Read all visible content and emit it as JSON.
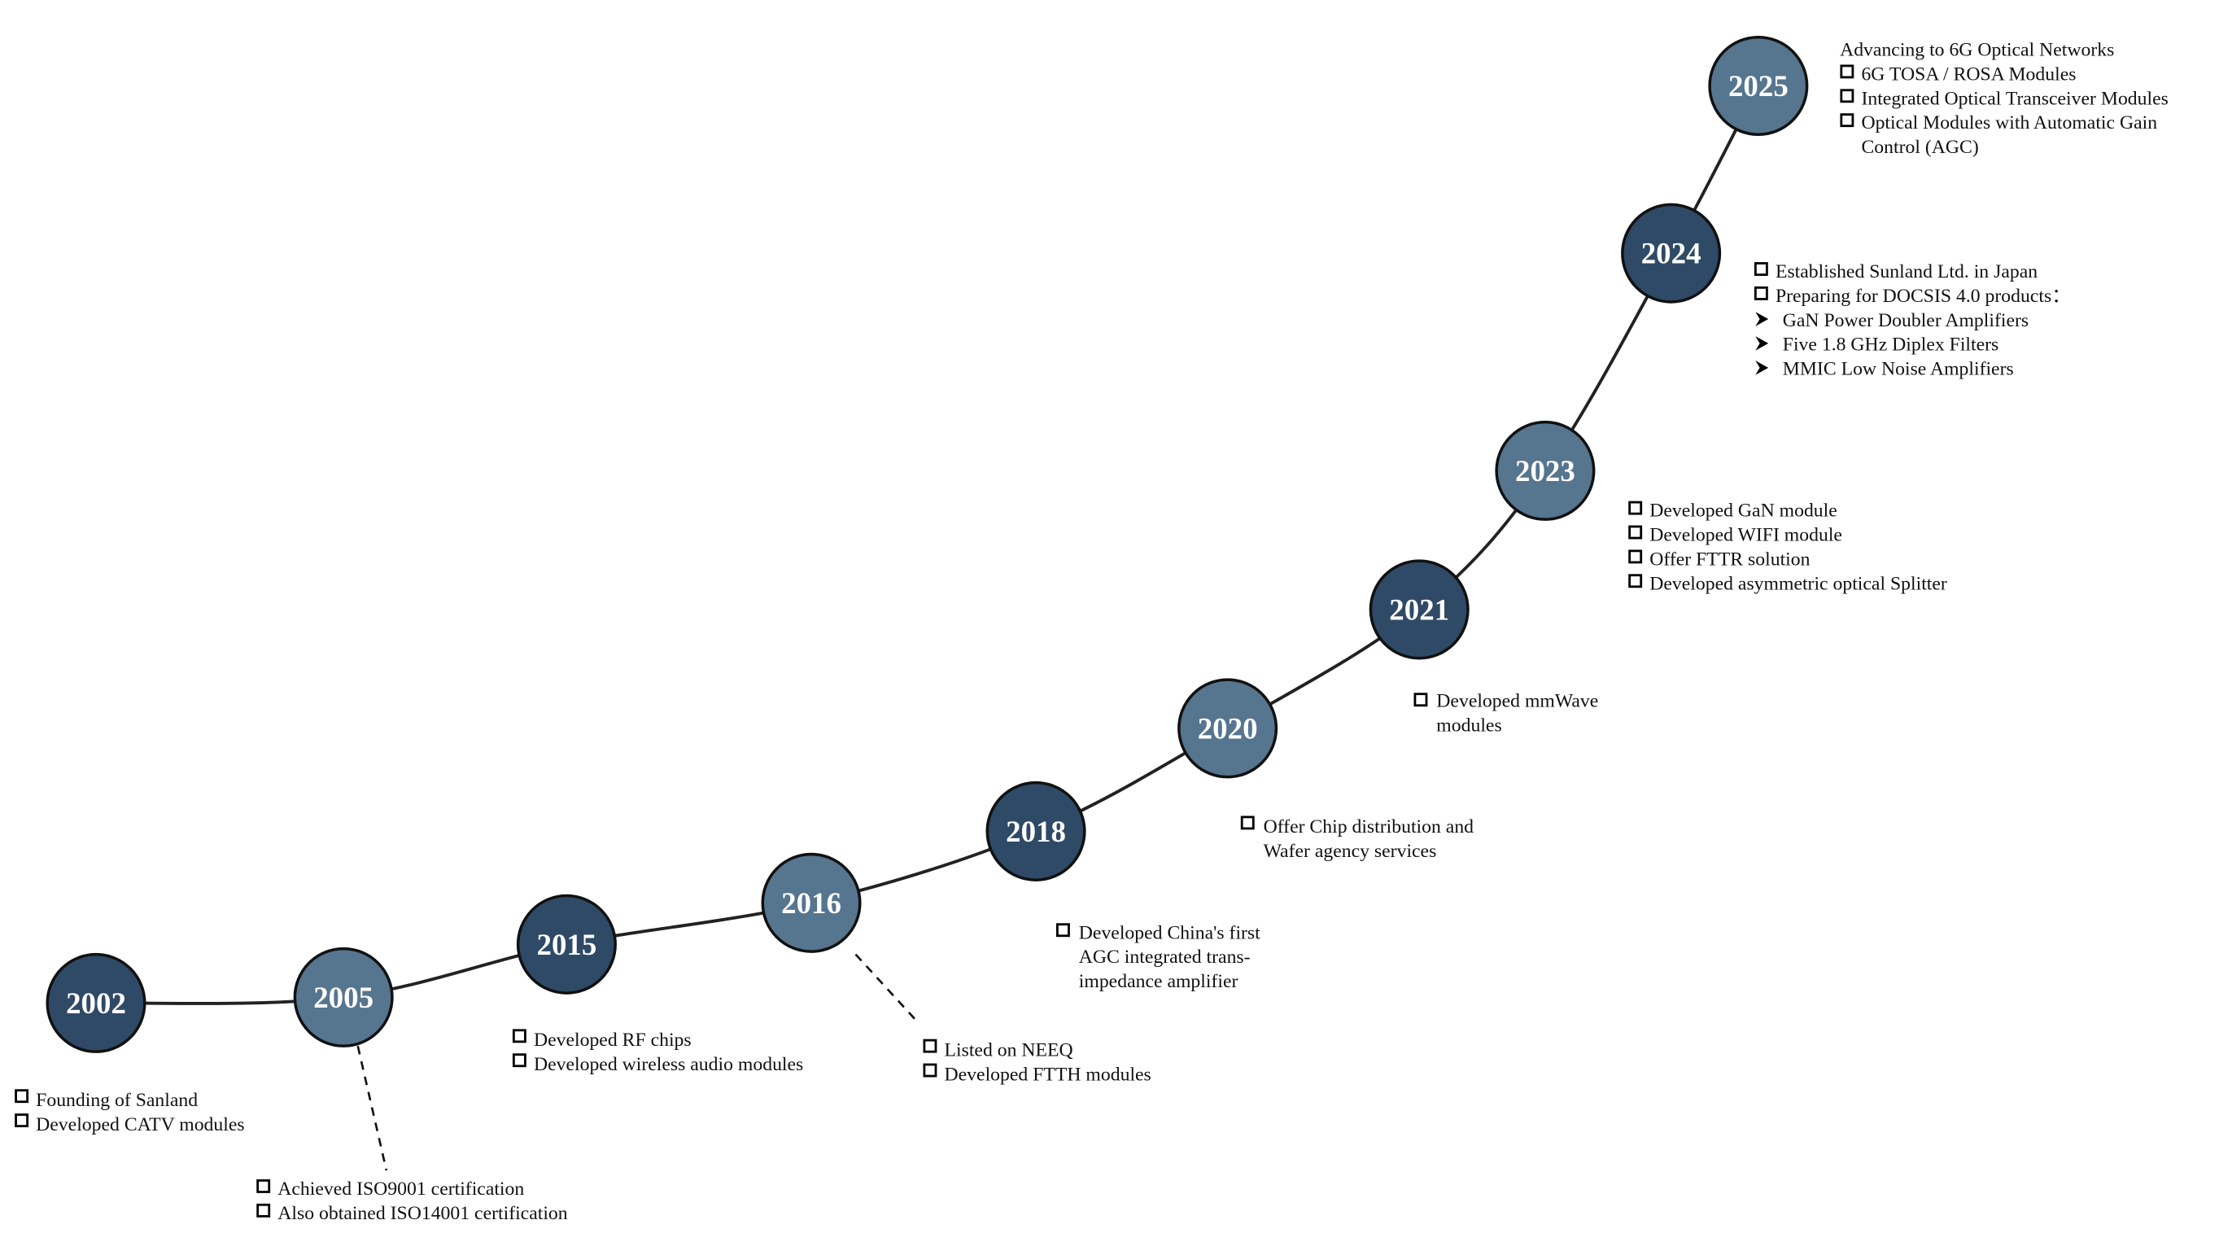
{
  "colors": {
    "node_dark": "#2f4a66",
    "node_light": "#56758f",
    "line": "#222222"
  },
  "milestones": [
    {
      "year": "2002",
      "items": [
        "Founding of Sanland",
        "Developed CATV modules"
      ]
    },
    {
      "year": "2005",
      "items": [
        "Achieved ISO9001 certification",
        "Also obtained ISO14001 certification"
      ]
    },
    {
      "year": "2015",
      "items": [
        "Developed RF chips",
        "Developed wireless audio modules"
      ]
    },
    {
      "year": "2016",
      "items": [
        "Listed on NEEQ",
        "Developed FTTH modules"
      ]
    },
    {
      "year": "2018",
      "items": [
        "Developed China's first",
        "AGC integrated trans-",
        "impedance amplifier"
      ]
    },
    {
      "year": "2020",
      "items": [
        "Offer Chip distribution and",
        "Wafer agency services"
      ]
    },
    {
      "year": "2021",
      "items": [
        "Developed mmWave",
        "modules"
      ]
    },
    {
      "year": "2023",
      "items": [
        "Developed GaN module",
        "Developed WIFI module",
        "Offer FTTR solution",
        "Developed asymmetric optical Splitter"
      ]
    },
    {
      "year": "2024",
      "items": [
        "Established Sunland Ltd. in Japan",
        "Preparing for DOCSIS 4.0 products："
      ],
      "sub_items": [
        "GaN Power Doubler Amplifiers",
        "Five 1.8 GHz Diplex Filters",
        "MMIC Low Noise Amplifiers"
      ]
    },
    {
      "year": "2025",
      "heading": "Advancing to 6G Optical Networks",
      "items": [
        "6G TOSA / ROSA Modules",
        "Integrated Optical Transceiver Modules",
        "Optical Modules with Automatic Gain",
        "Control (AGC)"
      ]
    }
  ]
}
